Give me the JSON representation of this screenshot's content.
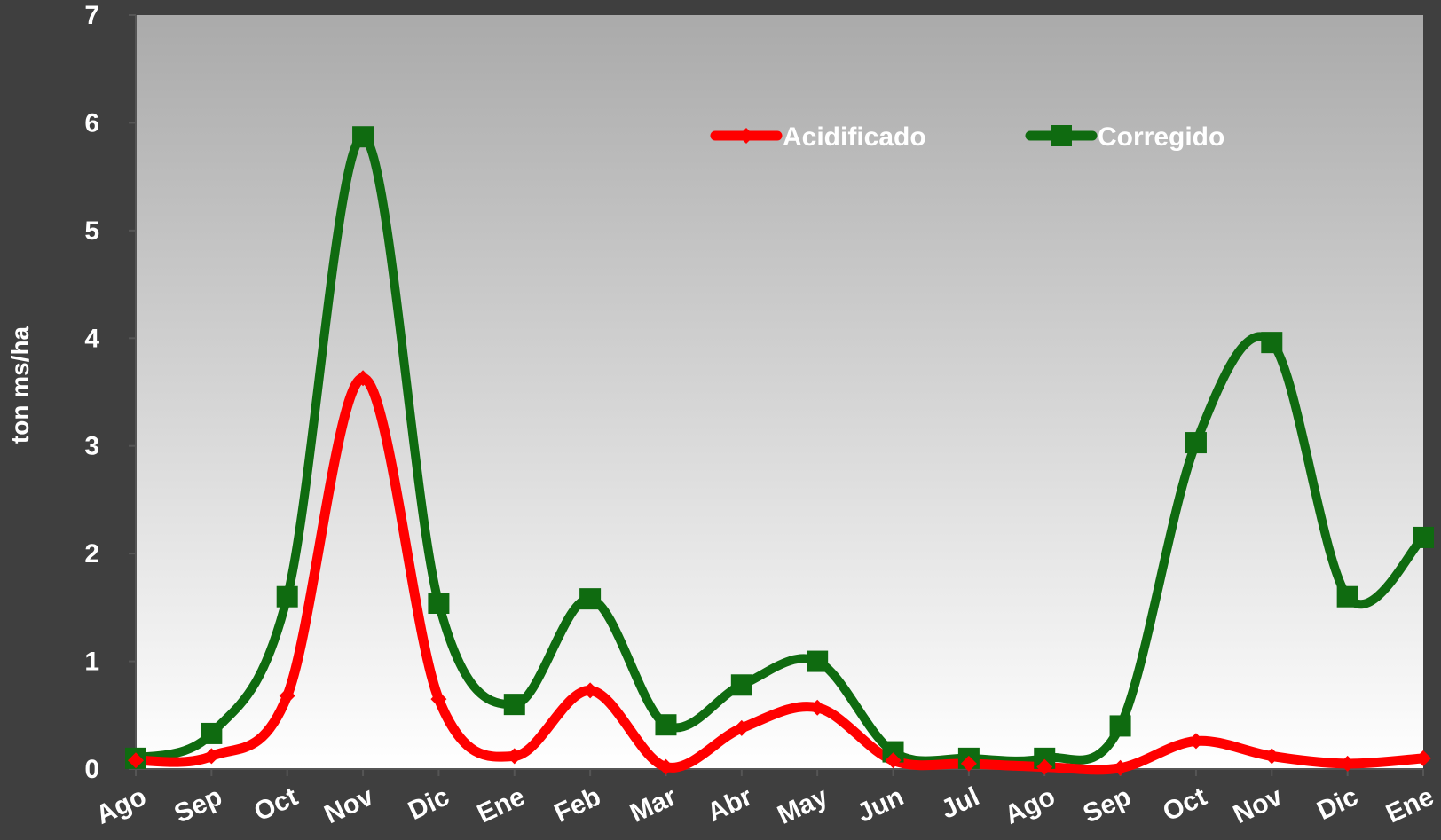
{
  "chart_data": {
    "type": "line",
    "categories": [
      "Ago",
      "Sep",
      "Oct",
      "Nov",
      "Dic",
      "Ene",
      "Feb",
      "Mar",
      "Abr",
      "May",
      "Jun",
      "Jul",
      "Ago",
      "Sep",
      "Oct",
      "Nov",
      "Dic",
      "Ene"
    ],
    "series": [
      {
        "name": "Acidificado",
        "color": "#ff0000",
        "marker": "diamond",
        "values": [
          0.08,
          0.12,
          0.68,
          3.63,
          0.65,
          0.12,
          0.73,
          0.02,
          0.38,
          0.57,
          0.08,
          0.05,
          0.02,
          0.01,
          0.26,
          0.12,
          0.05,
          0.1
        ]
      },
      {
        "name": "Corregido",
        "color": "#0f6b10",
        "marker": "square",
        "values": [
          0.1,
          0.33,
          1.6,
          5.87,
          1.54,
          0.6,
          1.58,
          0.41,
          0.78,
          1.0,
          0.16,
          0.1,
          0.1,
          0.4,
          3.03,
          3.96,
          1.6,
          2.15
        ]
      }
    ],
    "title": "",
    "xlabel": "",
    "ylabel": "ton ms/ha",
    "ylim": [
      0,
      7
    ],
    "yticks": [
      "0",
      "1",
      "2",
      "3",
      "4",
      "5",
      "6",
      "7"
    ],
    "grid": false,
    "legend_position": "top-center",
    "plot_background": "gradient gray to white",
    "background_color": "#3f3f3f"
  }
}
